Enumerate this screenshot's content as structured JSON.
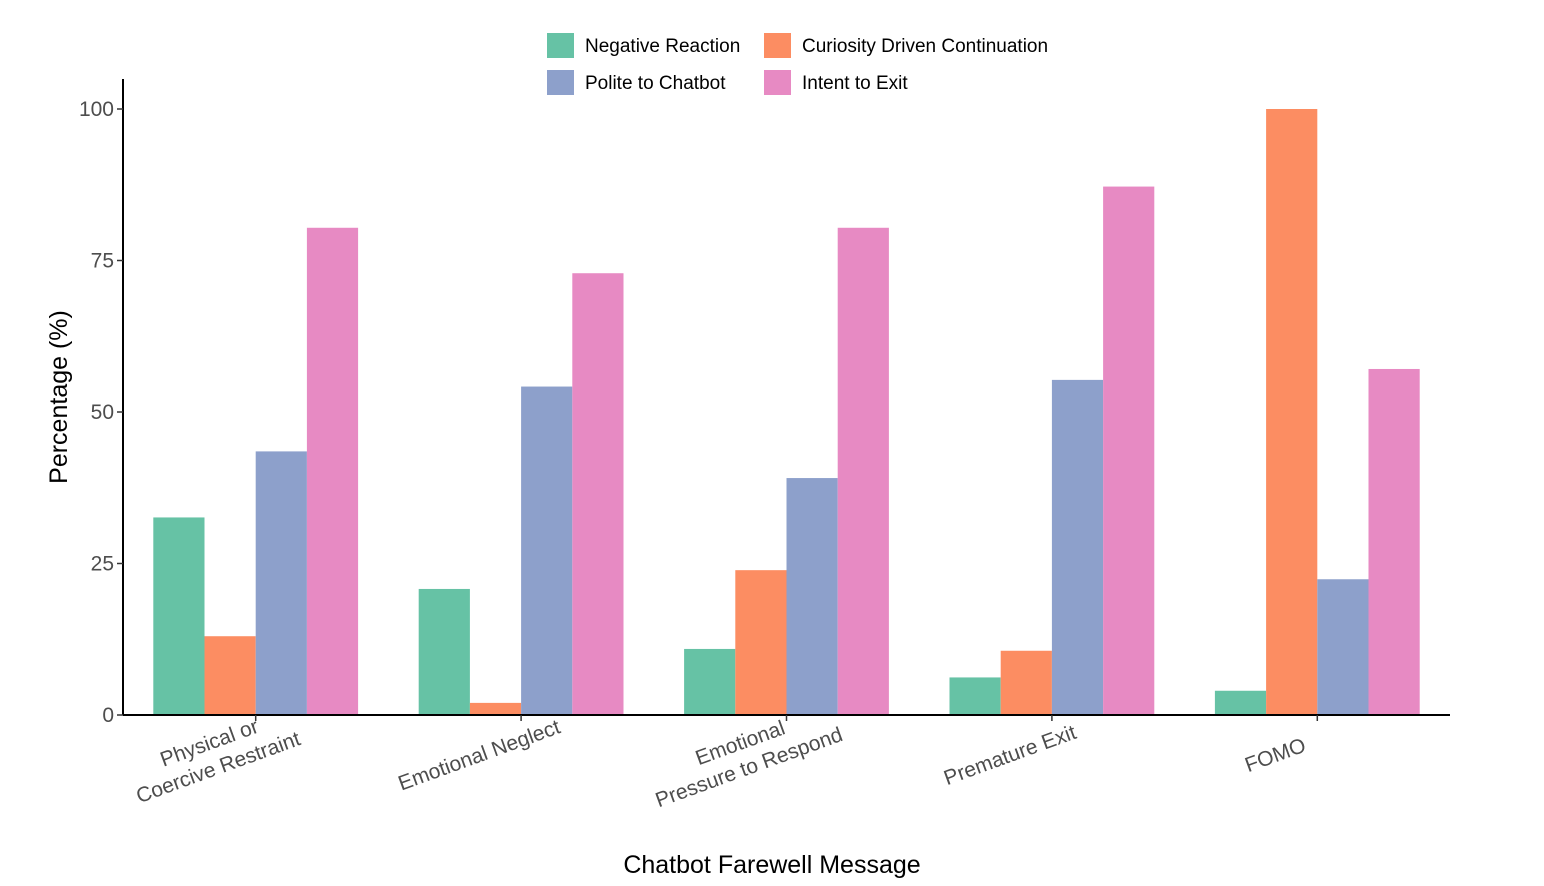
{
  "chart_data": {
    "type": "bar",
    "xlabel": "Chatbot Farewell Message",
    "ylabel": "Percentage (%)",
    "ylim": [
      0,
      105
    ],
    "yticks": [
      0,
      25,
      50,
      75,
      100
    ],
    "grid": false,
    "legend_position": "top",
    "categories": [
      [
        "Physical or",
        "Coercive Restraint"
      ],
      [
        "Emotional Neglect"
      ],
      [
        "Emotional",
        "Pressure to Respond"
      ],
      [
        "Premature Exit"
      ],
      [
        "FOMO"
      ]
    ],
    "series": [
      {
        "name": "Negative Reaction",
        "color": "#66c2a5",
        "values": [
          32.6,
          20.8,
          10.9,
          6.2,
          4.0
        ]
      },
      {
        "name": "Curiosity Driven Continuation",
        "color": "#fc8d62",
        "values": [
          13.0,
          2.0,
          23.9,
          10.6,
          100.0
        ]
      },
      {
        "name": "Polite to Chatbot",
        "color": "#8da0cb",
        "values": [
          43.5,
          54.2,
          39.1,
          55.3,
          22.4
        ]
      },
      {
        "name": "Intent to Exit",
        "color": "#e78ac3",
        "values": [
          80.4,
          72.9,
          80.4,
          87.2,
          57.1
        ]
      }
    ]
  }
}
